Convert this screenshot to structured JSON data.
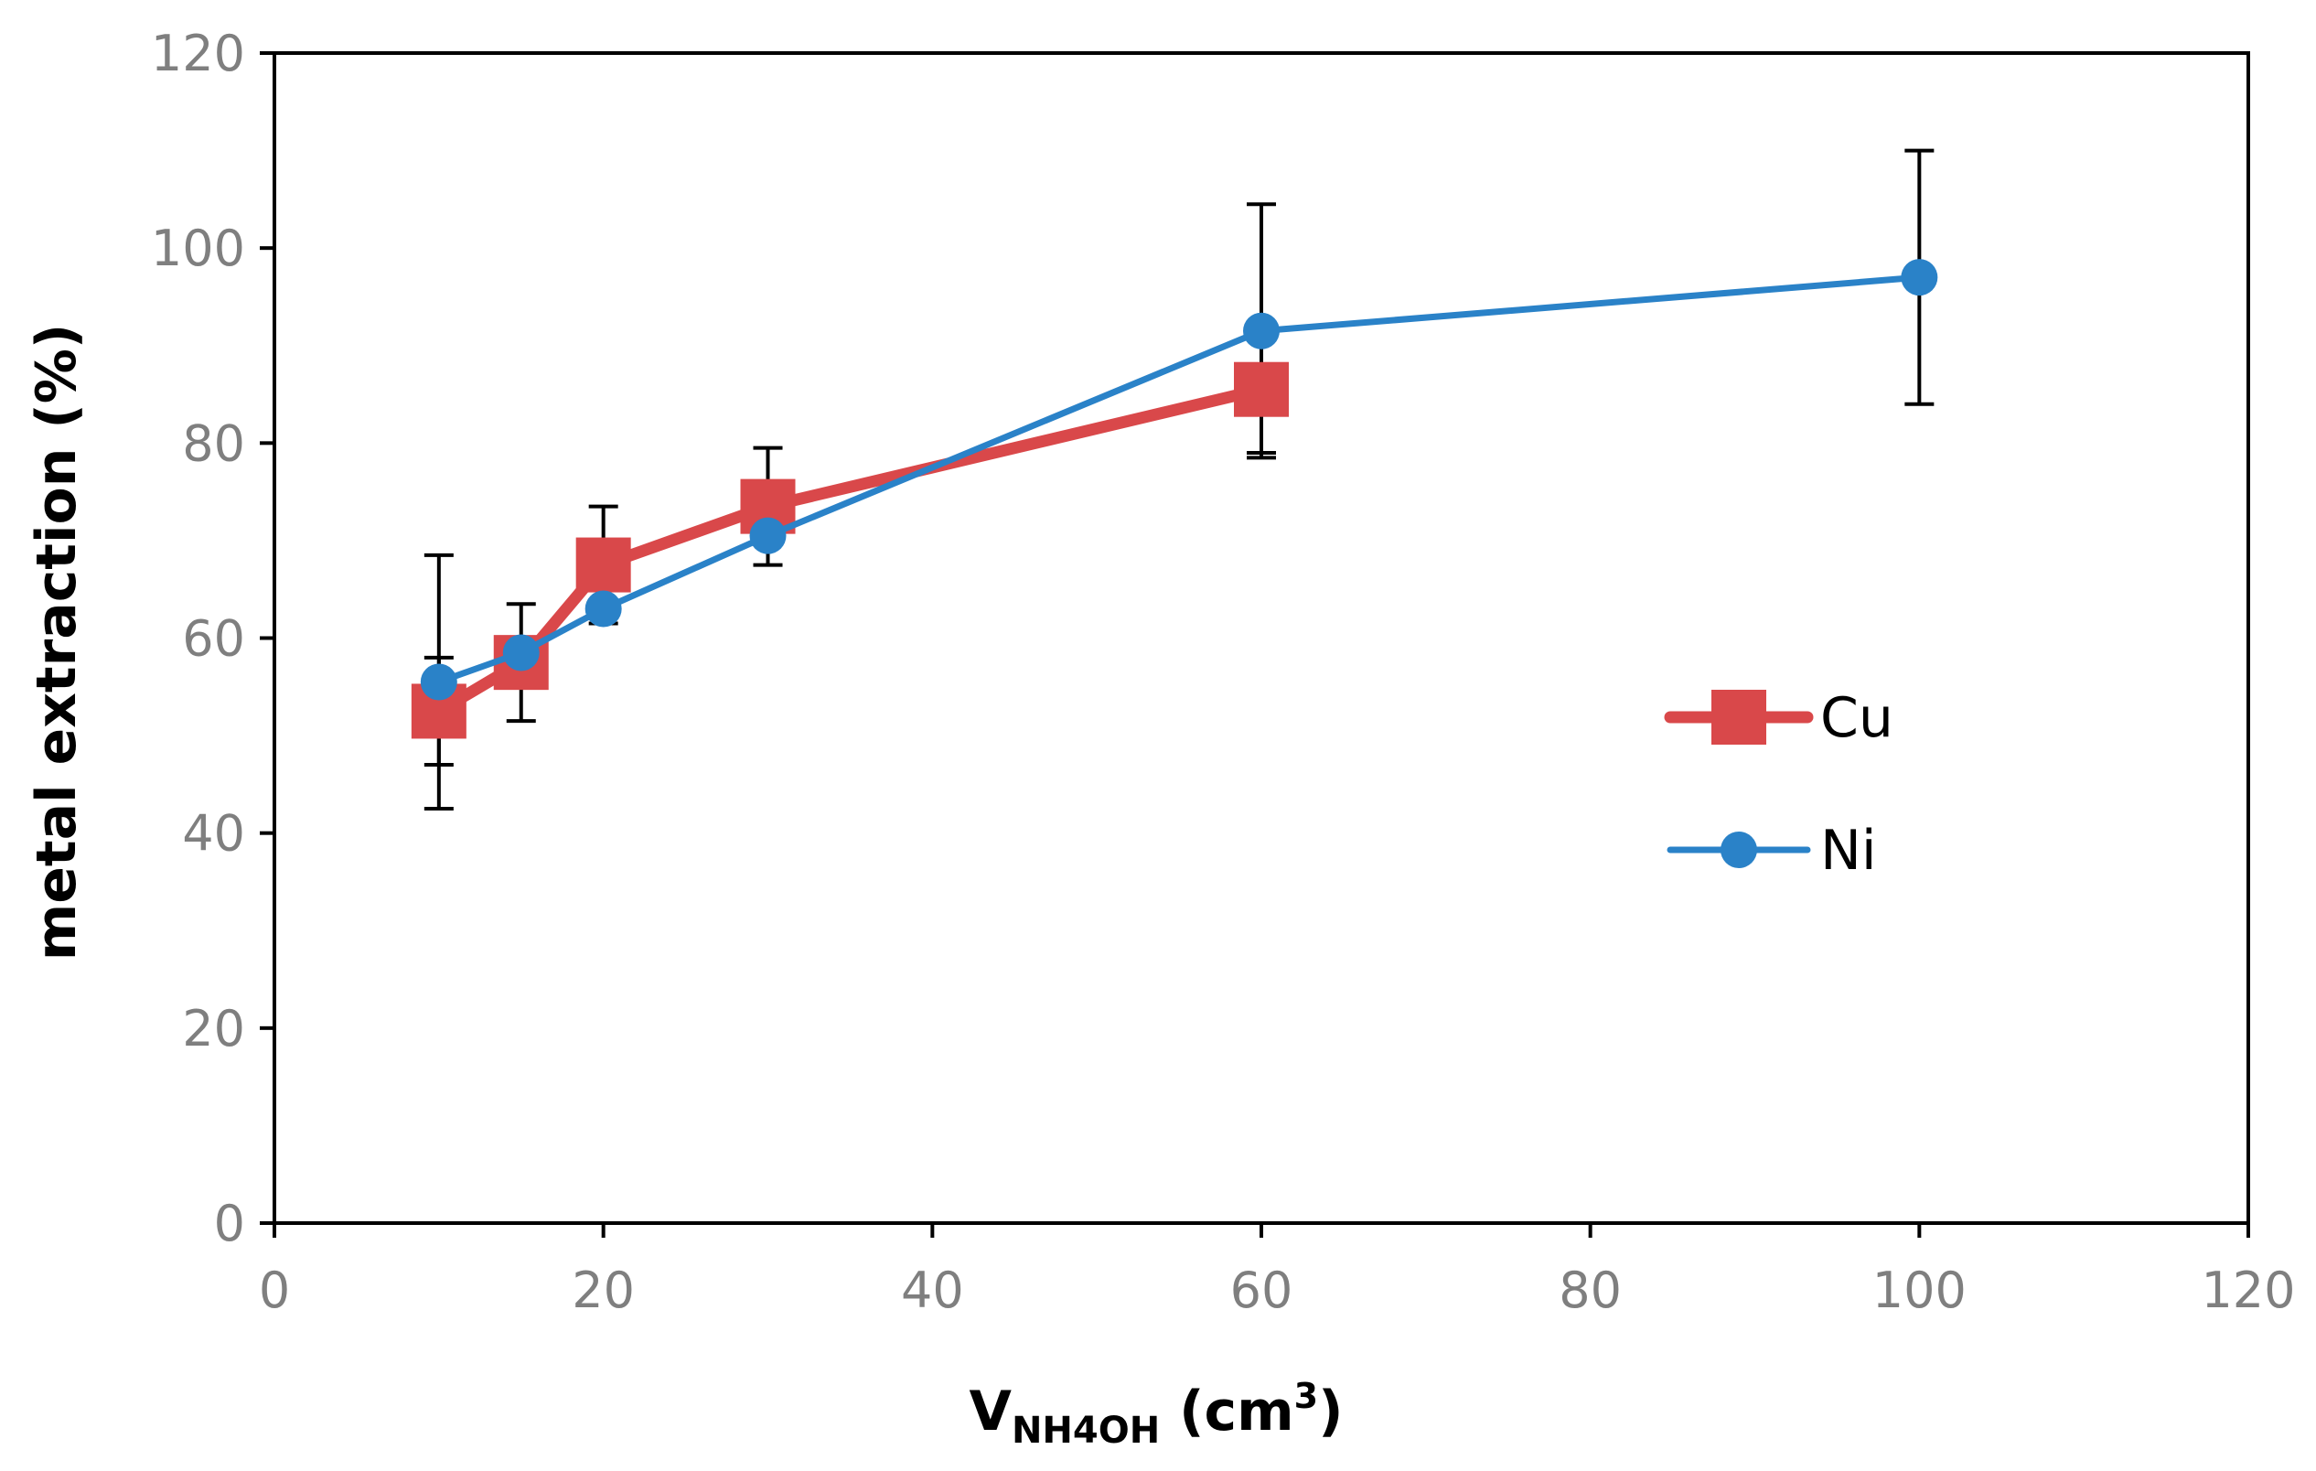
{
  "chart_data": {
    "type": "line",
    "title": "",
    "xlabel": {
      "main": "V",
      "sub": "NH4OH",
      "unit_pre": " (cm",
      "unit_sup": "3",
      "unit_post": ")"
    },
    "ylabel": "metal extraction (%)",
    "xlim": [
      0,
      120
    ],
    "ylim": [
      0,
      120
    ],
    "xticks": [
      "0",
      "20",
      "40",
      "60",
      "80",
      "100",
      "120"
    ],
    "yticks": [
      "0",
      "20",
      "40",
      "60",
      "80",
      "100",
      "120"
    ],
    "grid": false,
    "legend_position": "right-middle",
    "series": [
      {
        "name": "Cu",
        "color": "#d9484a",
        "marker": "square",
        "x": [
          10,
          15,
          20,
          30,
          60
        ],
        "y": [
          52.5,
          57.5,
          67.5,
          73.5,
          85.5
        ],
        "err": [
          5.5,
          6,
          6,
          6,
          6.5
        ]
      },
      {
        "name": "Ni",
        "color": "#2a82c8",
        "marker": "circle",
        "x": [
          10,
          15,
          20,
          30,
          60,
          100
        ],
        "y": [
          55.5,
          58.5,
          63,
          70.5,
          91.5,
          97
        ],
        "err": [
          13,
          0,
          0,
          0,
          13,
          13
        ]
      }
    ]
  }
}
